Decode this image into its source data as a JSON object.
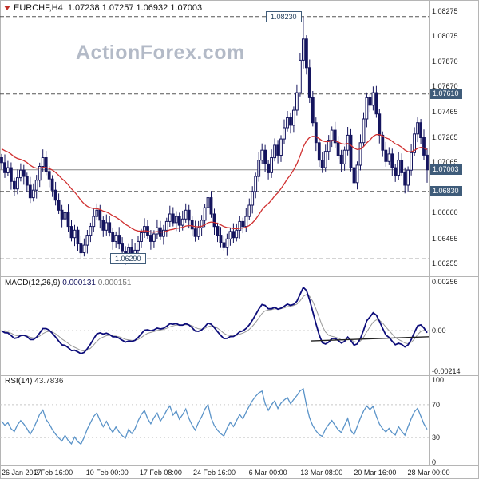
{
  "watermark": "ActionForex.com",
  "colors": {
    "background": "#ffffff",
    "border": "#b5b5b5",
    "candle": "#15155e",
    "ma_line": "#d03030",
    "macd_line": "#0d0d7a",
    "macd_signal": "#999999",
    "rsi_line": "#5a93c8",
    "level_dash": "#555555",
    "current_price_line": "#8a8a8a",
    "badge_bg": "#3f5c7a",
    "watermark_color": "#b3bac7",
    "trendline": "#222222",
    "grid_dotted": "#c8c8c8"
  },
  "chart_data": {
    "type": "candlestick",
    "symbol": "EURCHF",
    "timeframe": "H4",
    "title_symbol": "EURCHF,H4",
    "title_ohlc_text": "1.07238 1.07257 1.06932 1.07003",
    "price_range": {
      "max": 1.0833,
      "min": 1.0619
    },
    "price_axis_ticks": [
      "1.08275",
      "1.08075",
      "1.07870",
      "1.07670",
      "1.07465",
      "1.07265",
      "1.07065",
      "1.06660",
      "1.06455",
      "1.06255"
    ],
    "time_axis_ticks": [
      "26 Jan 2017",
      "2 Feb 16:00",
      "10 Feb 00:00",
      "17 Feb 08:00",
      "24 Feb 16:00",
      "6 Mar 00:00",
      "13 Mar 08:00",
      "20 Mar 16:00",
      "28 Mar 00:00"
    ],
    "key_levels": [
      {
        "value": 1.0823,
        "label": "1.08230",
        "style": "dashed",
        "label_position": "on-chart-top"
      },
      {
        "value": 1.0761,
        "label": "1.07610",
        "style": "dashed",
        "label_position": "axis"
      },
      {
        "value": 1.0683,
        "label": "1.06830",
        "style": "dashed",
        "label_position": "axis"
      },
      {
        "value": 1.0629,
        "label": "1.06290",
        "style": "dashed",
        "label_position": "on-chart-bottom"
      }
    ],
    "current_price": {
      "value": 1.07003,
      "label": "1.07003"
    },
    "candles": {
      "close": [
        1.0706,
        1.0698,
        1.0702,
        1.0691,
        1.0685,
        1.0694,
        1.07,
        1.0695,
        1.0688,
        1.0678,
        1.0684,
        1.0692,
        1.0703,
        1.071,
        1.0699,
        1.0693,
        1.0684,
        1.0676,
        1.0668,
        1.0661,
        1.0666,
        1.0655,
        1.0646,
        1.0652,
        1.0641,
        1.0634,
        1.064,
        1.0648,
        1.0655,
        1.0663,
        1.0668,
        1.066,
        1.0652,
        1.0658,
        1.065,
        1.0643,
        1.0648,
        1.0641,
        1.0635,
        1.0631,
        1.0638,
        1.0632,
        1.0636,
        1.0643,
        1.065,
        1.0655,
        1.0648,
        1.0643,
        1.0649,
        1.0654,
        1.0647,
        1.0652,
        1.0659,
        1.0665,
        1.0658,
        1.0663,
        1.0656,
        1.0661,
        1.0668,
        1.066,
        1.0653,
        1.0647,
        1.0654,
        1.066,
        1.067,
        1.0678,
        1.0665,
        1.0655,
        1.0648,
        1.0642,
        1.0638,
        1.0645,
        1.0651,
        1.0646,
        1.0652,
        1.0659,
        1.0655,
        1.0663,
        1.0672,
        1.0683,
        1.0695,
        1.0708,
        1.0716,
        1.0705,
        1.0698,
        1.071,
        1.072,
        1.0712,
        1.0725,
        1.0734,
        1.0742,
        1.0736,
        1.0748,
        1.0762,
        1.0788,
        1.0805,
        1.0782,
        1.0758,
        1.0738,
        1.0722,
        1.0708,
        1.0702,
        1.0715,
        1.0724,
        1.0732,
        1.0722,
        1.0712,
        1.0705,
        1.0716,
        1.0728,
        1.0702,
        1.069,
        1.0704,
        1.0722,
        1.0741,
        1.0758,
        1.0752,
        1.0762,
        1.0745,
        1.0728,
        1.0716,
        1.0707,
        1.0713,
        1.0702,
        1.0696,
        1.0708,
        1.0698,
        1.0688,
        1.07,
        1.0714,
        1.0729,
        1.0738,
        1.0726,
        1.0712,
        1.07003
      ],
      "wick_overrides": {
        "41": {
          "low": 1.0629
        },
        "65": {
          "high": 1.0682
        },
        "95": {
          "high": 1.0823
        },
        "117": {
          "high": 1.0767
        },
        "134": {
          "low": 1.069
        }
      }
    },
    "moving_average": {
      "type": "EMA",
      "period_render": 25,
      "seed": 1.0718
    },
    "macd": {
      "label": "MACD(12,26,9)",
      "value_main": "0.000131",
      "value_signal": "0.000151",
      "axis_labels": {
        "top": "0.00256",
        "zero": "0.00",
        "bottom": "-0.00214"
      },
      "render_periods": {
        "fast": 6,
        "slow": 13,
        "signal": 5
      },
      "trendline": {
        "from_bar": 98,
        "from_value": -0.0006,
        "to_bar": 135,
        "to_value": -0.00035
      }
    },
    "rsi": {
      "label": "RSI(14)",
      "value": "43.7836",
      "axis_labels": [
        "100",
        "70",
        "30",
        "0"
      ],
      "levels": [
        70,
        30
      ],
      "render_period": 7
    }
  }
}
